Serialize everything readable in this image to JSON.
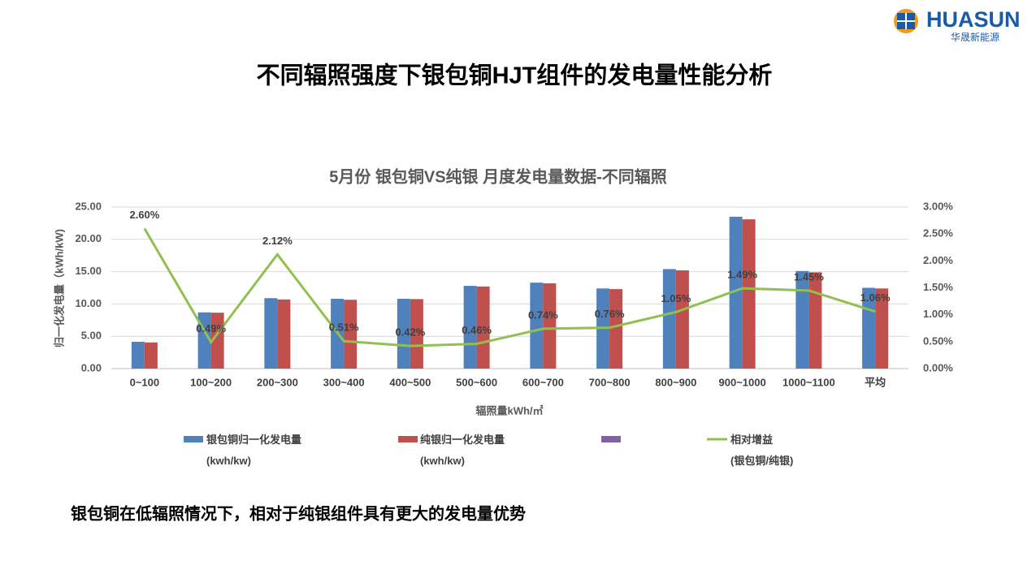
{
  "logo": {
    "name": "HUASUN",
    "subtitle": "华晟新能源"
  },
  "header": {
    "title": "不同辐照强度下银包铜HJT组件的发电量性能分析"
  },
  "chart_data": {
    "type": "bar",
    "title": "5月份 银包铜VS纯银 月度发电量数据-不同辐照",
    "x_label": "辐照量kWh/㎡",
    "y_label": "归一化发电量（kWh/kW)",
    "categories": [
      "0~100",
      "100~200",
      "200~300",
      "300~400",
      "400~500",
      "500~600",
      "600~700",
      "700~800",
      "800~900",
      "900~1000",
      "1000~1100",
      "平均"
    ],
    "series": [
      {
        "name": "银包铜归一化发电量\n(kwh/kw)",
        "color": "#4f81bd",
        "values": [
          4.15,
          8.7,
          10.9,
          10.8,
          10.8,
          12.8,
          13.3,
          12.4,
          15.4,
          23.5,
          15.1,
          12.5
        ]
      },
      {
        "name": "纯银归一化发电量\n(kwh/kw)",
        "color": "#c0504d",
        "values": [
          4.05,
          8.65,
          10.7,
          10.65,
          10.75,
          12.7,
          13.2,
          12.3,
          15.2,
          23.1,
          14.9,
          12.4
        ]
      },
      {
        "name": "相对增益\n(银包铜/纯银)",
        "color": "#92c050",
        "type": "line",
        "axis": "y2",
        "values": [
          2.6,
          0.49,
          2.12,
          0.51,
          0.42,
          0.46,
          0.74,
          0.76,
          1.05,
          1.49,
          1.45,
          1.06
        ],
        "value_labels": [
          "2.60%",
          "0.49%",
          "2.12%",
          "0.51%",
          "0.42%",
          "0.46%",
          "0.74%",
          "0.76%",
          "1.05%",
          "1.49%",
          "1.45%",
          "1.06%"
        ]
      }
    ],
    "ylim": [
      0,
      25
    ],
    "yticks": [
      {
        "value": 0,
        "label": "0.00"
      },
      {
        "value": 5,
        "label": "5.00"
      },
      {
        "value": 10,
        "label": "10.00"
      },
      {
        "value": 15,
        "label": "15.00"
      },
      {
        "value": 20,
        "label": "20.00"
      },
      {
        "value": 25,
        "label": "25.00"
      }
    ],
    "y2lim": [
      0,
      3
    ],
    "y2ticks": [
      {
        "value": 0,
        "label": "0.00%"
      },
      {
        "value": 0.5,
        "label": "0.50%"
      },
      {
        "value": 1,
        "label": "1.00%"
      },
      {
        "value": 1.5,
        "label": "1.50%"
      },
      {
        "value": 2,
        "label": "2.00%"
      },
      {
        "value": 2.5,
        "label": "2.50%"
      },
      {
        "value": 3,
        "label": "3.00%"
      }
    ],
    "grid": true
  },
  "footer": {
    "text": "银包铜在低辐照情况下，相对于纯银组件具有更大的发电量优势"
  }
}
